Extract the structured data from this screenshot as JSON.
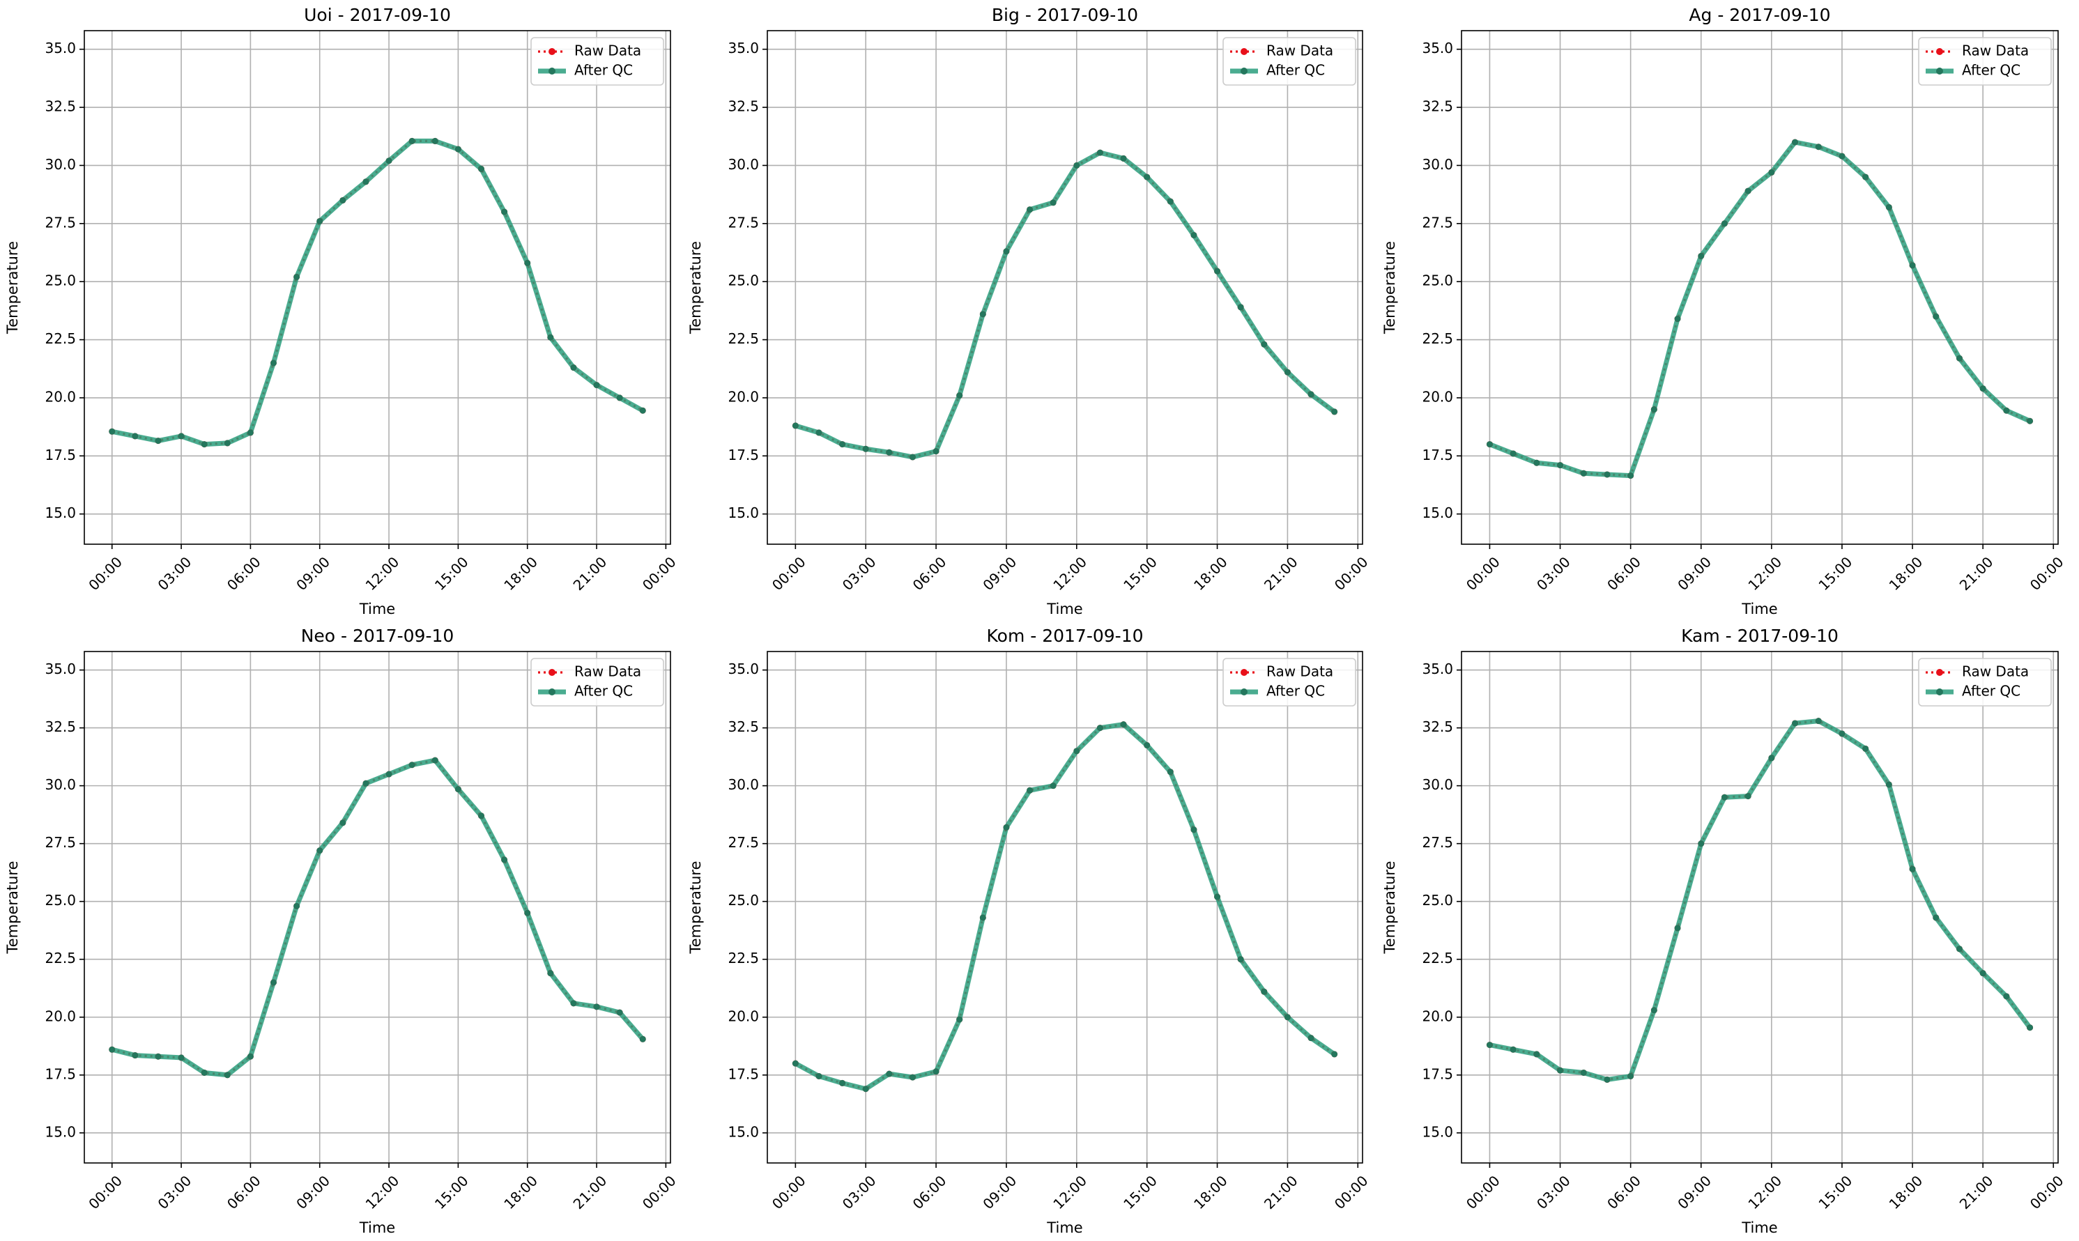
{
  "figure": {
    "legend": {
      "raw_label": "Raw Data",
      "qc_label": "After QC"
    },
    "colors": {
      "raw": "#e8101a",
      "qc": "#2a9d7c",
      "qc_marker": "#24775d",
      "grid": "#b0b0b0"
    }
  },
  "chart_data": [
    {
      "type": "line",
      "title": "Uoi - 2017-09-10",
      "xlabel": "Time",
      "ylabel": "Temperature",
      "xlim": [
        -1.2,
        24.2
      ],
      "ylim": [
        13.7,
        35.8
      ],
      "xticks": [
        0,
        3,
        6,
        9,
        12,
        15,
        18,
        21,
        24
      ],
      "xtick_labels": [
        "00:00",
        "03:00",
        "06:00",
        "09:00",
        "12:00",
        "15:00",
        "18:00",
        "21:00",
        "00:00"
      ],
      "yticks": [
        15.0,
        17.5,
        20.0,
        22.5,
        25.0,
        27.5,
        30.0,
        32.5,
        35.0
      ],
      "ytick_labels": [
        "15.0",
        "17.5",
        "20.0",
        "22.5",
        "25.0",
        "27.5",
        "30.0",
        "32.5",
        "35.0"
      ],
      "grid": true,
      "legend_position": "top-right",
      "x": [
        0,
        1,
        2,
        3,
        4,
        5,
        6,
        7,
        8,
        9,
        10,
        11,
        12,
        13,
        14,
        15,
        16,
        17,
        18,
        19,
        20,
        21,
        22,
        23
      ],
      "series": [
        {
          "name": "Raw Data",
          "values": [
            18.55,
            18.35,
            18.15,
            18.35,
            18.0,
            18.05,
            18.5,
            21.5,
            25.2,
            27.6,
            28.5,
            29.3,
            30.2,
            31.05,
            31.05,
            30.7,
            29.85,
            28.0,
            25.8,
            22.6,
            21.3,
            20.55,
            20.0,
            19.45
          ]
        },
        {
          "name": "After QC",
          "values": [
            18.55,
            18.35,
            18.15,
            18.35,
            18.0,
            18.05,
            18.5,
            21.5,
            25.2,
            27.6,
            28.5,
            29.3,
            30.2,
            31.05,
            31.05,
            30.7,
            29.85,
            28.0,
            25.8,
            22.6,
            21.3,
            20.55,
            20.0,
            19.45
          ]
        }
      ]
    },
    {
      "type": "line",
      "title": "Big - 2017-09-10",
      "xlabel": "Time",
      "ylabel": "Temperature",
      "xlim": [
        -1.2,
        24.2
      ],
      "ylim": [
        13.7,
        35.8
      ],
      "xticks": [
        0,
        3,
        6,
        9,
        12,
        15,
        18,
        21,
        24
      ],
      "xtick_labels": [
        "00:00",
        "03:00",
        "06:00",
        "09:00",
        "12:00",
        "15:00",
        "18:00",
        "21:00",
        "00:00"
      ],
      "yticks": [
        15.0,
        17.5,
        20.0,
        22.5,
        25.0,
        27.5,
        30.0,
        32.5,
        35.0
      ],
      "ytick_labels": [
        "15.0",
        "17.5",
        "20.0",
        "22.5",
        "25.0",
        "27.5",
        "30.0",
        "32.5",
        "35.0"
      ],
      "grid": true,
      "legend_position": "top-right",
      "x": [
        0,
        1,
        2,
        3,
        4,
        5,
        6,
        7,
        8,
        9,
        10,
        11,
        12,
        13,
        14,
        15,
        16,
        17,
        18,
        19,
        20,
        21,
        22,
        23
      ],
      "series": [
        {
          "name": "Raw Data",
          "values": [
            18.8,
            18.5,
            18.0,
            17.8,
            17.65,
            17.45,
            17.7,
            20.1,
            23.6,
            26.3,
            28.1,
            28.4,
            30.0,
            30.55,
            30.3,
            29.5,
            28.45,
            27.0,
            25.45,
            23.9,
            22.3,
            21.1,
            20.15,
            19.4
          ]
        },
        {
          "name": "After QC",
          "values": [
            18.8,
            18.5,
            18.0,
            17.8,
            17.65,
            17.45,
            17.7,
            20.1,
            23.6,
            26.3,
            28.1,
            28.4,
            30.0,
            30.55,
            30.3,
            29.5,
            28.45,
            27.0,
            25.45,
            23.9,
            22.3,
            21.1,
            20.15,
            19.4
          ]
        }
      ]
    },
    {
      "type": "line",
      "title": "Ag - 2017-09-10",
      "xlabel": "Time",
      "ylabel": "Temperature",
      "xlim": [
        -1.2,
        24.2
      ],
      "ylim": [
        13.7,
        35.8
      ],
      "xticks": [
        0,
        3,
        6,
        9,
        12,
        15,
        18,
        21,
        24
      ],
      "xtick_labels": [
        "00:00",
        "03:00",
        "06:00",
        "09:00",
        "12:00",
        "15:00",
        "18:00",
        "21:00",
        "00:00"
      ],
      "yticks": [
        15.0,
        17.5,
        20.0,
        22.5,
        25.0,
        27.5,
        30.0,
        32.5,
        35.0
      ],
      "ytick_labels": [
        "15.0",
        "17.5",
        "20.0",
        "22.5",
        "25.0",
        "27.5",
        "30.0",
        "32.5",
        "35.0"
      ],
      "grid": true,
      "legend_position": "top-right",
      "x": [
        0,
        1,
        2,
        3,
        4,
        5,
        6,
        7,
        8,
        9,
        10,
        11,
        12,
        13,
        14,
        15,
        16,
        17,
        18,
        19,
        20,
        21,
        22,
        23
      ],
      "series": [
        {
          "name": "Raw Data",
          "values": [
            18.0,
            17.6,
            17.2,
            17.1,
            16.75,
            16.7,
            16.65,
            19.5,
            23.4,
            26.1,
            27.5,
            28.9,
            29.7,
            31.0,
            30.8,
            30.4,
            29.5,
            28.2,
            25.7,
            23.5,
            21.7,
            20.4,
            19.45,
            19.0
          ]
        },
        {
          "name": "After QC",
          "values": [
            18.0,
            17.6,
            17.2,
            17.1,
            16.75,
            16.7,
            16.65,
            19.5,
            23.4,
            26.1,
            27.5,
            28.9,
            29.7,
            31.0,
            30.8,
            30.4,
            29.5,
            28.2,
            25.7,
            23.5,
            21.7,
            20.4,
            19.45,
            19.0
          ]
        }
      ]
    },
    {
      "type": "line",
      "title": "Neo - 2017-09-10",
      "xlabel": "Time",
      "ylabel": "Temperature",
      "xlim": [
        -1.2,
        24.2
      ],
      "ylim": [
        13.7,
        35.8
      ],
      "xticks": [
        0,
        3,
        6,
        9,
        12,
        15,
        18,
        21,
        24
      ],
      "xtick_labels": [
        "00:00",
        "03:00",
        "06:00",
        "09:00",
        "12:00",
        "15:00",
        "18:00",
        "21:00",
        "00:00"
      ],
      "yticks": [
        15.0,
        17.5,
        20.0,
        22.5,
        25.0,
        27.5,
        30.0,
        32.5,
        35.0
      ],
      "ytick_labels": [
        "15.0",
        "17.5",
        "20.0",
        "22.5",
        "25.0",
        "27.5",
        "30.0",
        "32.5",
        "35.0"
      ],
      "grid": true,
      "legend_position": "top-right",
      "x": [
        0,
        1,
        2,
        3,
        4,
        5,
        6,
        7,
        8,
        9,
        10,
        11,
        12,
        13,
        14,
        15,
        16,
        17,
        18,
        19,
        20,
        21,
        22,
        23
      ],
      "series": [
        {
          "name": "Raw Data",
          "values": [
            18.6,
            18.35,
            18.3,
            18.25,
            17.6,
            17.5,
            18.3,
            21.5,
            24.8,
            27.2,
            28.4,
            30.1,
            30.5,
            30.9,
            31.1,
            29.85,
            28.7,
            26.8,
            24.5,
            21.9,
            20.6,
            20.45,
            20.2,
            19.05
          ]
        },
        {
          "name": "After QC",
          "values": [
            18.6,
            18.35,
            18.3,
            18.25,
            17.6,
            17.5,
            18.3,
            21.5,
            24.8,
            27.2,
            28.4,
            30.1,
            30.5,
            30.9,
            31.1,
            29.85,
            28.7,
            26.8,
            24.5,
            21.9,
            20.6,
            20.45,
            20.2,
            19.05
          ]
        }
      ]
    },
    {
      "type": "line",
      "title": "Kom - 2017-09-10",
      "xlabel": "Time",
      "ylabel": "Temperature",
      "xlim": [
        -1.2,
        24.2
      ],
      "ylim": [
        13.7,
        35.8
      ],
      "xticks": [
        0,
        3,
        6,
        9,
        12,
        15,
        18,
        21,
        24
      ],
      "xtick_labels": [
        "00:00",
        "03:00",
        "06:00",
        "09:00",
        "12:00",
        "15:00",
        "18:00",
        "21:00",
        "00:00"
      ],
      "yticks": [
        15.0,
        17.5,
        20.0,
        22.5,
        25.0,
        27.5,
        30.0,
        32.5,
        35.0
      ],
      "ytick_labels": [
        "15.0",
        "17.5",
        "20.0",
        "22.5",
        "25.0",
        "27.5",
        "30.0",
        "32.5",
        "35.0"
      ],
      "grid": true,
      "legend_position": "top-right",
      "x": [
        0,
        1,
        2,
        3,
        4,
        5,
        6,
        7,
        8,
        9,
        10,
        11,
        12,
        13,
        14,
        15,
        16,
        17,
        18,
        19,
        20,
        21,
        22,
        23
      ],
      "series": [
        {
          "name": "Raw Data",
          "values": [
            18.0,
            17.45,
            17.15,
            16.9,
            17.55,
            17.4,
            17.65,
            19.9,
            24.3,
            28.2,
            29.8,
            30.0,
            31.5,
            32.5,
            32.65,
            31.75,
            30.6,
            28.1,
            25.2,
            22.5,
            21.1,
            20.0,
            19.1,
            18.4
          ]
        },
        {
          "name": "After QC",
          "values": [
            18.0,
            17.45,
            17.15,
            16.9,
            17.55,
            17.4,
            17.65,
            19.9,
            24.3,
            28.2,
            29.8,
            30.0,
            31.5,
            32.5,
            32.65,
            31.75,
            30.6,
            28.1,
            25.2,
            22.5,
            21.1,
            20.0,
            19.1,
            18.4
          ]
        }
      ]
    },
    {
      "type": "line",
      "title": "Kam - 2017-09-10",
      "xlabel": "Time",
      "ylabel": "Temperature",
      "xlim": [
        -1.2,
        24.2
      ],
      "ylim": [
        13.7,
        35.8
      ],
      "xticks": [
        0,
        3,
        6,
        9,
        12,
        15,
        18,
        21,
        24
      ],
      "xtick_labels": [
        "00:00",
        "03:00",
        "06:00",
        "09:00",
        "12:00",
        "15:00",
        "18:00",
        "21:00",
        "00:00"
      ],
      "yticks": [
        15.0,
        17.5,
        20.0,
        22.5,
        25.0,
        27.5,
        30.0,
        32.5,
        35.0
      ],
      "ytick_labels": [
        "15.0",
        "17.5",
        "20.0",
        "22.5",
        "25.0",
        "27.5",
        "30.0",
        "32.5",
        "35.0"
      ],
      "grid": true,
      "legend_position": "top-right",
      "x": [
        0,
        1,
        2,
        3,
        4,
        5,
        6,
        7,
        8,
        9,
        10,
        11,
        12,
        13,
        14,
        15,
        16,
        17,
        18,
        19,
        20,
        21,
        22,
        23
      ],
      "series": [
        {
          "name": "Raw Data",
          "values": [
            18.8,
            18.6,
            18.4,
            17.7,
            17.6,
            17.3,
            17.45,
            20.3,
            23.85,
            27.5,
            29.5,
            29.55,
            31.2,
            32.7,
            32.8,
            32.25,
            31.6,
            30.05,
            26.4,
            24.3,
            22.95,
            21.9,
            20.9,
            19.55
          ]
        },
        {
          "name": "After QC",
          "values": [
            18.8,
            18.6,
            18.4,
            17.7,
            17.6,
            17.3,
            17.45,
            20.3,
            23.85,
            27.5,
            29.5,
            29.55,
            31.2,
            32.7,
            32.8,
            32.25,
            31.6,
            30.05,
            26.4,
            24.3,
            22.95,
            21.9,
            20.9,
            19.55
          ]
        }
      ]
    }
  ]
}
